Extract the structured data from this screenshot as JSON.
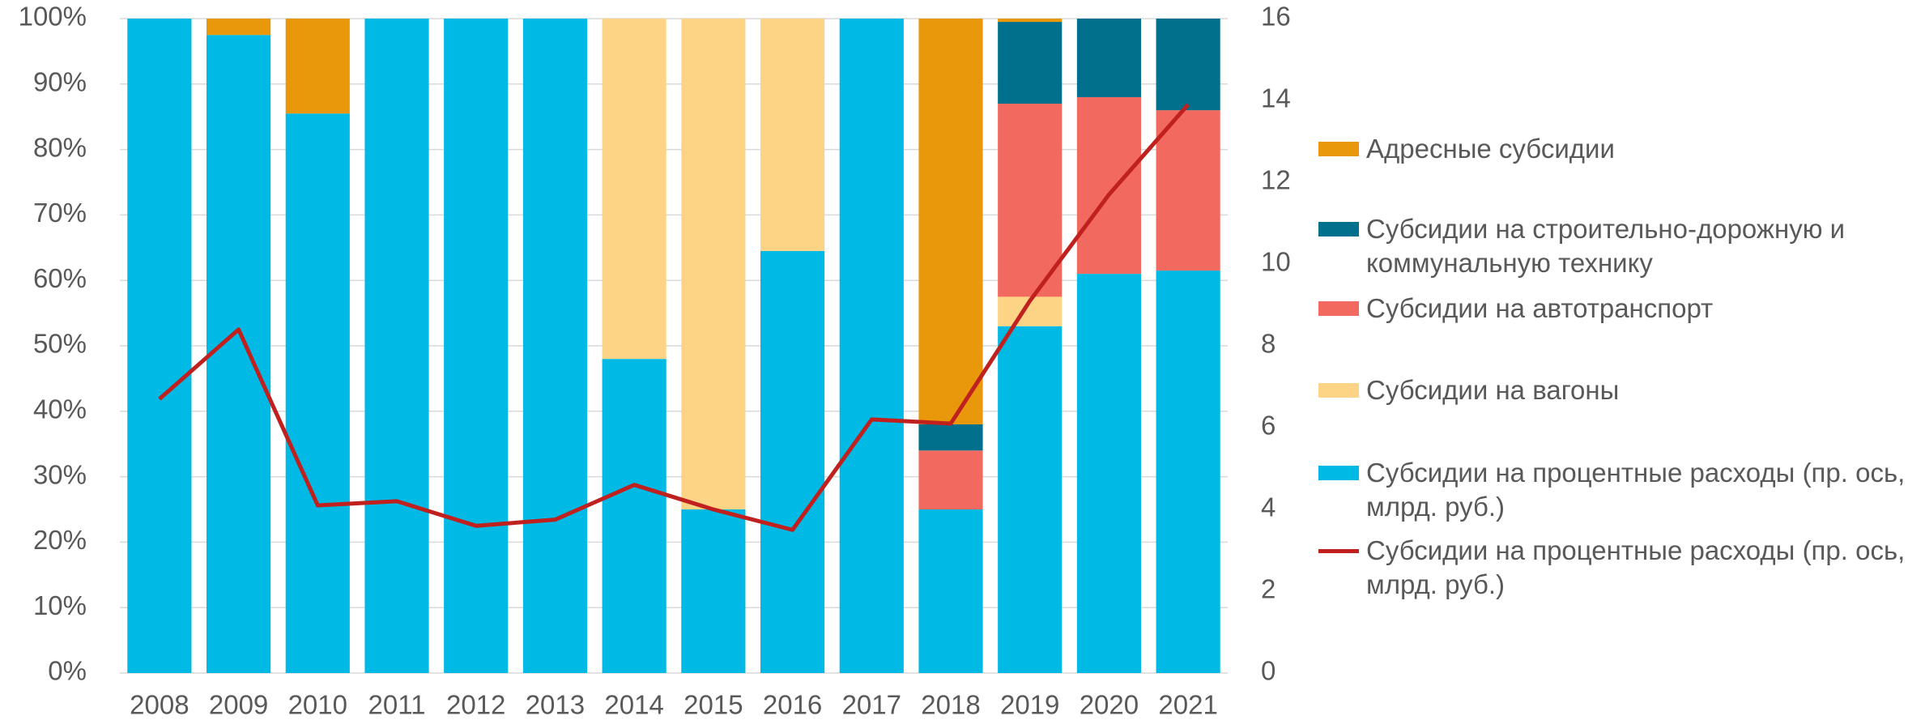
{
  "chart_data": {
    "type": "bar",
    "stacked": true,
    "categories": [
      "2008",
      "2009",
      "2010",
      "2011",
      "2012",
      "2013",
      "2014",
      "2015",
      "2016",
      "2017",
      "2018",
      "2019",
      "2020",
      "2021"
    ],
    "series": [
      {
        "name": "Субсидии на процентные расходы (пр. ось, млрд. руб.)",
        "color": "#00b9e4",
        "values": [
          100,
          97.5,
          85.5,
          100,
          100,
          100,
          48,
          25,
          64.5,
          100,
          25,
          53,
          61,
          61.5
        ]
      },
      {
        "name": "Субсидии на вагоны",
        "color": "#fdd386",
        "values": [
          null,
          null,
          null,
          null,
          null,
          null,
          52,
          75,
          35.5,
          null,
          null,
          4.5,
          null,
          null
        ]
      },
      {
        "name": "Субсидии на автотранспорт",
        "color": "#f26a5f",
        "values": [
          null,
          null,
          null,
          null,
          null,
          null,
          null,
          null,
          null,
          null,
          9,
          29.5,
          27,
          24.5
        ]
      },
      {
        "name": "Субсидии на строительно-дорожную и коммунальную технику",
        "color": "#00708c",
        "values": [
          null,
          null,
          null,
          null,
          null,
          null,
          null,
          null,
          null,
          null,
          4,
          12.5,
          12,
          14
        ]
      },
      {
        "name": "Адресные субсидии",
        "color": "#e8980a",
        "values": [
          null,
          2.5,
          14.5,
          null,
          null,
          null,
          null,
          null,
          null,
          null,
          62,
          0.5,
          null,
          null
        ]
      },
      {
        "name": "Субсидии на процентные расходы (пр. ось, млрд. руб.)",
        "color": "#c0201e",
        "type": "line",
        "axis": "y2",
        "values": [
          6.7,
          8.4,
          4.1,
          4.2,
          3.6,
          3.75,
          4.6,
          4.0,
          3.5,
          6.2,
          6.1,
          9.1,
          11.7,
          13.9
        ]
      }
    ],
    "ylim": [
      0,
      100
    ],
    "yticks": [
      {
        "value": 0,
        "label": "0%"
      },
      {
        "value": 10,
        "label": "10%"
      },
      {
        "value": 20,
        "label": "20%"
      },
      {
        "value": 30,
        "label": "30%"
      },
      {
        "value": 40,
        "label": "40%"
      },
      {
        "value": 50,
        "label": "50%"
      },
      {
        "value": 60,
        "label": "60%"
      },
      {
        "value": 70,
        "label": "70%"
      },
      {
        "value": 80,
        "label": "80%"
      },
      {
        "value": 90,
        "label": "90%"
      },
      {
        "value": 100,
        "label": "100%"
      }
    ],
    "y2lim": [
      0,
      16
    ],
    "y2ticks": [
      0,
      2,
      4,
      6,
      8,
      10,
      12,
      14,
      16
    ],
    "grid": true,
    "legend": "right"
  }
}
